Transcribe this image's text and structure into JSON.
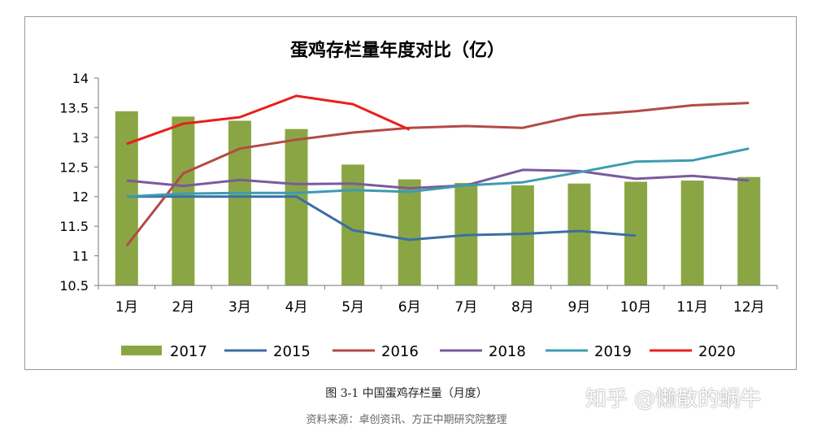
{
  "chart_data": {
    "type": "bar",
    "title": "蛋鸡存栏量年度对比（亿）",
    "categories": [
      "1月",
      "2月",
      "3月",
      "4月",
      "5月",
      "6月",
      "7月",
      "8月",
      "9月",
      "10月",
      "11月",
      "12月"
    ],
    "ylim": [
      10.5,
      14
    ],
    "yticks": [
      "14",
      "13.5",
      "13",
      "12.5",
      "12",
      "11.5",
      "11",
      "10.5"
    ],
    "ytick_values": [
      14,
      13.5,
      13,
      12.5,
      12,
      11.5,
      11,
      10.5
    ],
    "grid": false,
    "legend_position": "bottom",
    "bar_series": {
      "name": "2017",
      "color": "#8aa644",
      "values": [
        13.44,
        13.35,
        13.28,
        13.14,
        12.54,
        12.29,
        12.23,
        12.19,
        12.22,
        12.25,
        12.27,
        12.33
      ]
    },
    "line_series": [
      {
        "name": "2015",
        "color": "#3b6ea5",
        "values": [
          12.0,
          12.0,
          12.0,
          12.0,
          11.43,
          11.27,
          11.35,
          11.37,
          11.42,
          11.34,
          null,
          null
        ]
      },
      {
        "name": "2016",
        "color": "#b24b45",
        "values": [
          11.17,
          12.39,
          12.81,
          12.96,
          13.08,
          13.16,
          13.19,
          13.16,
          13.37,
          13.44,
          13.54,
          13.58
        ]
      },
      {
        "name": "2018",
        "color": "#7a5a9e",
        "values": [
          12.27,
          12.18,
          12.28,
          12.21,
          12.22,
          12.14,
          12.19,
          12.45,
          12.43,
          12.3,
          12.35,
          12.27
        ]
      },
      {
        "name": "2019",
        "color": "#3c9cb0",
        "values": [
          12.0,
          12.05,
          12.06,
          12.06,
          12.11,
          12.08,
          12.19,
          12.24,
          12.41,
          12.59,
          12.61,
          12.81
        ]
      },
      {
        "name": "2020",
        "color": "#e8201c",
        "values": [
          12.89,
          13.23,
          13.34,
          13.7,
          13.56,
          13.13,
          null,
          null,
          null,
          null,
          null,
          null
        ]
      }
    ]
  },
  "caption": "图 3-1 中国蛋鸡存栏量（月度）",
  "source": "资料来源：卓创资讯、方正中期研究院整理",
  "watermark": "知乎 @懒散的蜗牛"
}
